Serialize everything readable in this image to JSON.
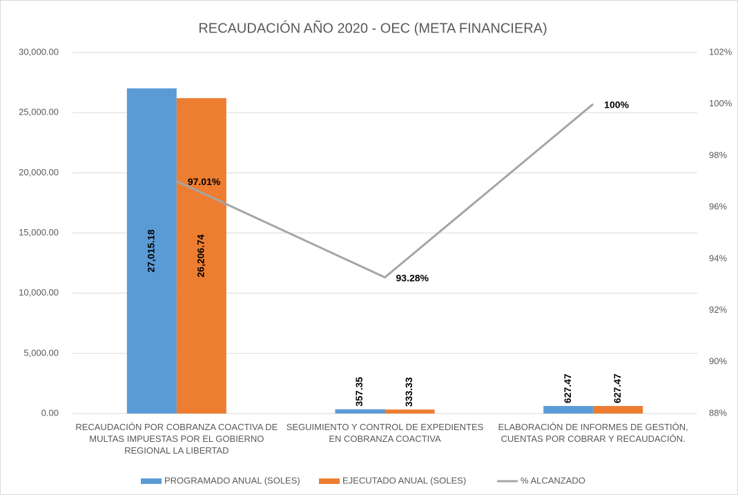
{
  "chart_data": {
    "type": "bar",
    "title": "RECAUDACIÓN AÑO 2020 - OEC (META FINANCIERA)",
    "categories": [
      "RECAUDACIÓN POR COBRANZA COACTIVA DE MULTAS IMPUESTAS POR EL GOBIERNO REGIONAL LA LIBERTAD",
      "SEGUIMIENTO Y CONTROL DE EXPEDIENTES EN COBRANZA COACTIVA",
      "ELABORACIÓN DE INFORMES DE GESTIÓN, CUENTAS POR COBRAR Y RECAUDACIÓN."
    ],
    "series": [
      {
        "name": "PROGRAMADO ANUAL (SOLES)",
        "color": "#5b9bd5",
        "values": [
          27015.18,
          357.35,
          627.47
        ],
        "value_labels": [
          "27,015.18",
          "357.35",
          "627.47"
        ]
      },
      {
        "name": "EJECUTADO ANUAL (SOLES)",
        "color": "#ed7d31",
        "values": [
          26206.74,
          333.33,
          627.47
        ],
        "value_labels": [
          "26,206.74",
          "333.33",
          "627.47"
        ]
      },
      {
        "name": "% ALCANZADO",
        "type": "line",
        "axis": "y2",
        "color": "#a5a5a5",
        "values": [
          97.01,
          93.28,
          100
        ],
        "value_labels": [
          "97.01%",
          "93.28%",
          "100%"
        ]
      }
    ],
    "ylim": [
      0,
      30000
    ],
    "yticks": [
      {
        "value": 0,
        "label": "0.00"
      },
      {
        "value": 5000,
        "label": "5,000.00"
      },
      {
        "value": 10000,
        "label": "10,000.00"
      },
      {
        "value": 15000,
        "label": "15,000.00"
      },
      {
        "value": 20000,
        "label": "20,000.00"
      },
      {
        "value": 25000,
        "label": "25,000.00"
      },
      {
        "value": 30000,
        "label": "30,000.00"
      }
    ],
    "y2lim": [
      88,
      102
    ],
    "y2ticks": [
      {
        "value": 88,
        "label": "88%"
      },
      {
        "value": 90,
        "label": "90%"
      },
      {
        "value": 92,
        "label": "92%"
      },
      {
        "value": 94,
        "label": "94%"
      },
      {
        "value": 96,
        "label": "96%"
      },
      {
        "value": 98,
        "label": "98%"
      },
      {
        "value": 100,
        "label": "100%"
      },
      {
        "value": 102,
        "label": "102%"
      }
    ],
    "grid": true,
    "legend": "bottom"
  }
}
